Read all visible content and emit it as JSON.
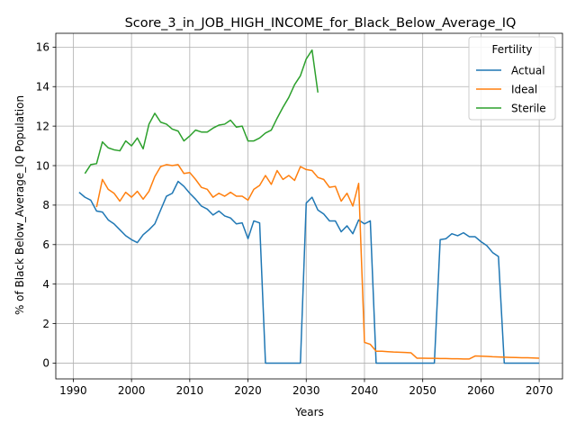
{
  "chart_data": {
    "type": "line",
    "title": "Score_3_in_JOB_HIGH_INCOME_for_Black_Below_Average_IQ",
    "xlabel": "Years",
    "ylabel": "% of Black Below_Average_IQ Population",
    "xlim": [
      1987,
      2074
    ],
    "ylim": [
      -0.8,
      16.7
    ],
    "xticks": [
      1990,
      2000,
      2010,
      2020,
      2030,
      2040,
      2050,
      2060,
      2070
    ],
    "yticks": [
      0,
      2,
      4,
      6,
      8,
      10,
      12,
      14,
      16
    ],
    "grid": true,
    "legend": {
      "title": "Fertility",
      "placement": "top-right"
    },
    "series": [
      {
        "name": "Actual",
        "color": "#1f77b4",
        "x": [
          1991,
          1992,
          1993,
          1994,
          1995,
          1996,
          1997,
          1998,
          1999,
          2000,
          2001,
          2002,
          2003,
          2004,
          2005,
          2006,
          2007,
          2008,
          2009,
          2010,
          2011,
          2012,
          2013,
          2014,
          2015,
          2016,
          2017,
          2018,
          2019,
          2020,
          2021,
          2022,
          2023,
          2024,
          2025,
          2026,
          2027,
          2028,
          2029,
          2030,
          2031,
          2032,
          2033,
          2034,
          2035,
          2036,
          2037,
          2038,
          2039,
          2040,
          2041,
          2042,
          2043,
          2044,
          2045,
          2046,
          2047,
          2048,
          2049,
          2050,
          2051,
          2052,
          2053,
          2054,
          2055,
          2056,
          2057,
          2058,
          2059,
          2060,
          2061,
          2062,
          2063,
          2064,
          2065,
          2066,
          2067,
          2068,
          2069,
          2070
        ],
        "values": [
          8.65,
          8.4,
          8.25,
          7.7,
          7.65,
          7.25,
          7.05,
          6.75,
          6.45,
          6.25,
          6.1,
          6.5,
          6.75,
          7.05,
          7.75,
          8.45,
          8.6,
          9.2,
          8.95,
          8.6,
          8.3,
          7.95,
          7.8,
          7.5,
          7.7,
          7.45,
          7.35,
          7.05,
          7.1,
          6.3,
          7.2,
          7.1,
          0.0,
          0.0,
          0.0,
          0.0,
          0.0,
          0.0,
          0.0,
          8.1,
          8.4,
          7.75,
          7.55,
          7.2,
          7.2,
          6.65,
          6.95,
          6.55,
          7.25,
          7.05,
          7.2,
          0.0,
          0.0,
          0.0,
          0.0,
          0.0,
          0.0,
          0.0,
          0.0,
          0.0,
          0.0,
          0.0,
          6.25,
          6.3,
          6.55,
          6.45,
          6.6,
          6.4,
          6.4,
          6.15,
          5.95,
          5.6,
          5.4,
          0.0,
          0.0,
          0.0,
          0.0,
          0.0,
          0.0,
          0.0
        ]
      },
      {
        "name": "Ideal",
        "color": "#ff7f0e",
        "x": [
          1994,
          1995,
          1996,
          1997,
          1998,
          1999,
          2000,
          2001,
          2002,
          2003,
          2004,
          2005,
          2006,
          2007,
          2008,
          2009,
          2010,
          2011,
          2012,
          2013,
          2014,
          2015,
          2016,
          2017,
          2018,
          2019,
          2020,
          2021,
          2022,
          2023,
          2024,
          2025,
          2026,
          2027,
          2028,
          2029,
          2030,
          2031,
          2032,
          2033,
          2034,
          2035,
          2036,
          2037,
          2038,
          2039,
          2040,
          2041,
          2042,
          2043,
          2044,
          2045,
          2046,
          2047,
          2048,
          2049,
          2050,
          2051,
          2052,
          2053,
          2054,
          2055,
          2056,
          2057,
          2058,
          2059,
          2060,
          2061,
          2062,
          2063,
          2064,
          2065,
          2066,
          2067,
          2068,
          2069,
          2070
        ],
        "values": [
          7.9,
          9.3,
          8.8,
          8.6,
          8.2,
          8.65,
          8.4,
          8.7,
          8.3,
          8.7,
          9.45,
          9.95,
          10.05,
          10.0,
          10.05,
          9.6,
          9.65,
          9.3,
          8.9,
          8.8,
          8.4,
          8.6,
          8.45,
          8.65,
          8.45,
          8.45,
          8.25,
          8.8,
          9.0,
          9.5,
          9.05,
          9.75,
          9.3,
          9.5,
          9.25,
          9.95,
          9.8,
          9.75,
          9.4,
          9.3,
          8.9,
          8.95,
          8.2,
          8.6,
          7.95,
          9.1,
          1.05,
          0.95,
          0.6,
          0.6,
          0.58,
          0.56,
          0.55,
          0.54,
          0.52,
          0.25,
          0.25,
          0.24,
          0.24,
          0.23,
          0.23,
          0.22,
          0.22,
          0.21,
          0.21,
          0.36,
          0.35,
          0.34,
          0.32,
          0.31,
          0.3,
          0.29,
          0.28,
          0.27,
          0.27,
          0.26,
          0.25
        ]
      },
      {
        "name": "Sterile",
        "color": "#2ca02c",
        "x": [
          1992,
          1993,
          1994,
          1995,
          1996,
          1997,
          1998,
          1999,
          2000,
          2001,
          2002,
          2003,
          2004,
          2005,
          2006,
          2007,
          2008,
          2009,
          2010,
          2011,
          2012,
          2013,
          2014,
          2015,
          2016,
          2017,
          2018,
          2019,
          2020,
          2021,
          2022,
          2023,
          2024,
          2025,
          2026,
          2027,
          2028,
          2029,
          2030,
          2031,
          2032
        ],
        "values": [
          9.6,
          10.05,
          10.1,
          11.2,
          10.9,
          10.8,
          10.75,
          11.25,
          11.0,
          11.4,
          10.85,
          12.1,
          12.65,
          12.2,
          12.1,
          11.85,
          11.75,
          11.25,
          11.5,
          11.8,
          11.7,
          11.7,
          11.9,
          12.05,
          12.1,
          12.3,
          11.95,
          12.0,
          11.25,
          11.25,
          11.4,
          11.65,
          11.8,
          12.4,
          12.95,
          13.45,
          14.1,
          14.55,
          15.4,
          15.85,
          13.7
        ]
      }
    ]
  }
}
